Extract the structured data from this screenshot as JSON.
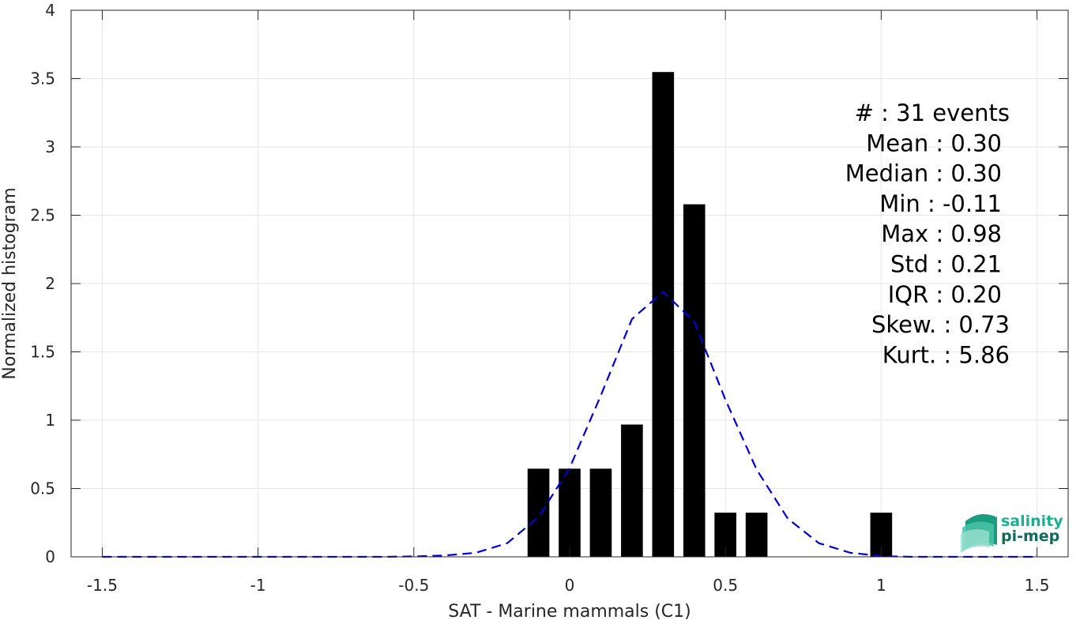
{
  "chart_data": {
    "type": "bar",
    "title": "",
    "xlabel": "SAT - Marine mammals (C1)",
    "ylabel": "Normalized histogram",
    "xlim": [
      -1.6,
      1.6
    ],
    "ylim": [
      0,
      4
    ],
    "grid": true,
    "x_ticks": [
      -1.5,
      -1,
      -0.5,
      0,
      0.5,
      1,
      1.5
    ],
    "x_tick_labels": [
      "-1.5",
      "-1",
      "-0.5",
      "0",
      "0.5",
      "1",
      "1.5"
    ],
    "y_ticks": [
      0,
      0.5,
      1,
      1.5,
      2,
      2.5,
      3,
      3.5,
      4
    ],
    "y_tick_labels": [
      "0",
      "0.5",
      "1",
      "1.5",
      "2",
      "2.5",
      "3",
      "3.5",
      "4"
    ],
    "bar_width": 0.07,
    "bar_color": "#000000",
    "histogram": {
      "x": [
        -0.1,
        0.0,
        0.1,
        0.2,
        0.3,
        0.4,
        0.5,
        0.6,
        1.0
      ],
      "values": [
        0.645,
        0.645,
        0.645,
        0.968,
        3.548,
        2.58,
        0.323,
        0.323,
        0.323
      ]
    },
    "fit_curve": {
      "style": "dashed",
      "color": "#0000dd",
      "x": [
        -1.5,
        -1.4,
        -1.3,
        -1.2,
        -1.1,
        -1.0,
        -0.9,
        -0.8,
        -0.7,
        -0.6,
        -0.5,
        -0.4,
        -0.3,
        -0.2,
        -0.1,
        0.0,
        0.1,
        0.2,
        0.3,
        0.4,
        0.5,
        0.6,
        0.7,
        0.8,
        0.9,
        1.0,
        1.1,
        1.2,
        1.3,
        1.4,
        1.5
      ],
      "y": [
        0,
        0,
        0,
        0,
        0,
        0,
        0,
        0,
        0,
        0,
        0.003,
        0.01,
        0.03,
        0.1,
        0.29,
        0.65,
        1.18,
        1.74,
        1.94,
        1.72,
        1.15,
        0.64,
        0.28,
        0.1,
        0.03,
        0.005,
        0,
        0,
        0,
        0,
        0
      ]
    }
  },
  "stats": [
    "#  : 31 events",
    "Mean : 0.30",
    "Median : 0.30",
    "Min : -0.11",
    "Max : 0.98",
    "Std : 0.21",
    "IQR : 0.20",
    "Skew. : 0.73",
    "Kurt. : 5.86"
  ],
  "logo": {
    "line1": "salinity",
    "line2": "pi-mep",
    "color1": "#1bb08f",
    "color2": "#0f6b5a"
  }
}
